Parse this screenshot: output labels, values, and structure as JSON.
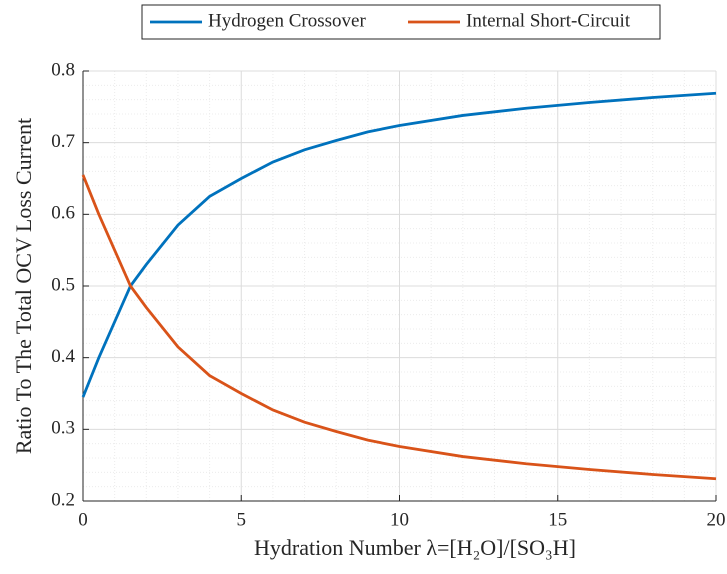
{
  "chart_data": {
    "type": "line",
    "x_label": "Hydration Number λ=[H₂O]/[SO₃H]",
    "y_label": "Ratio To The Total OCV Loss Current",
    "x": [
      0,
      0.5,
      1,
      1.5,
      2,
      3,
      4,
      5,
      6,
      7,
      8,
      9,
      10,
      12,
      14,
      16,
      18,
      20
    ],
    "series": [
      {
        "name": "Hydrogen Crossover",
        "color": "#0072bd",
        "values": [
          0.345,
          0.4,
          0.45,
          0.5,
          0.53,
          0.585,
          0.625,
          0.65,
          0.673,
          0.69,
          0.703,
          0.715,
          0.724,
          0.738,
          0.748,
          0.756,
          0.763,
          0.769
        ]
      },
      {
        "name": "Internal Short-Circuit",
        "color": "#d95319",
        "values": [
          0.655,
          0.6,
          0.55,
          0.5,
          0.47,
          0.415,
          0.375,
          0.35,
          0.327,
          0.31,
          0.297,
          0.285,
          0.276,
          0.262,
          0.252,
          0.244,
          0.237,
          0.231
        ]
      }
    ],
    "xlim": [
      0,
      20
    ],
    "xticks": [
      0,
      5,
      10,
      15,
      20
    ],
    "ylim": [
      0.2,
      0.8
    ],
    "yticks": [
      0.2,
      0.3,
      0.4,
      0.5,
      0.6,
      0.7,
      0.8
    ],
    "grid": true,
    "minor_grid": true,
    "legend": "top"
  }
}
